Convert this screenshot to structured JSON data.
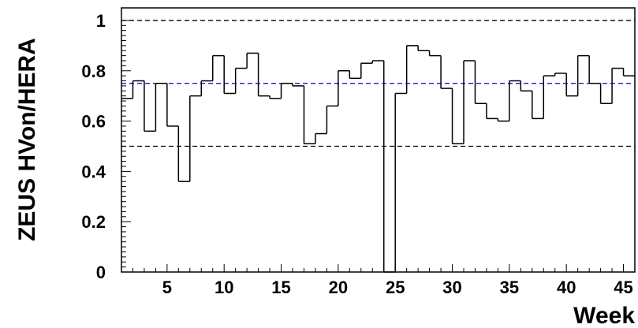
{
  "chart_data": {
    "type": "line",
    "step": true,
    "xlabel": "Week",
    "ylabel": "ZEUS HVon/HERA",
    "xlim": [
      1,
      46
    ],
    "ylim": [
      0,
      1.05
    ],
    "x_ticks": [
      5,
      10,
      15,
      20,
      25,
      30,
      35,
      40,
      45
    ],
    "y_ticks": [
      0,
      0.2,
      0.4,
      0.6,
      0.8,
      1
    ],
    "y_tick_labels": [
      "0",
      "0.2",
      "0.4",
      "0.6",
      "0.8",
      "1"
    ],
    "grid": false,
    "bin_edges": [
      1,
      2,
      3,
      4,
      5,
      6,
      7,
      8,
      9,
      10,
      11,
      12,
      13,
      14,
      15,
      16,
      17,
      18,
      19,
      20,
      21,
      22,
      23,
      24,
      25,
      26,
      27,
      28,
      29,
      30,
      31,
      32,
      33,
      34,
      35,
      36,
      37,
      38,
      39,
      40,
      41,
      42,
      43,
      44,
      45,
      46
    ],
    "values": [
      0.69,
      0.76,
      0.56,
      0.75,
      0.58,
      0.36,
      0.7,
      0.76,
      0.86,
      0.71,
      0.81,
      0.87,
      0.7,
      0.69,
      0.75,
      0.74,
      0.51,
      0.55,
      0.66,
      0.8,
      0.77,
      0.83,
      0.84,
      0.0,
      0.71,
      0.9,
      0.88,
      0.86,
      0.73,
      0.51,
      0.84,
      0.67,
      0.61,
      0.6,
      0.76,
      0.72,
      0.61,
      0.78,
      0.79,
      0.7,
      0.86,
      0.75,
      0.67,
      0.81,
      0.78
    ],
    "reference_lines": [
      {
        "y": 1.0,
        "color": "#000000",
        "style": "dashed"
      },
      {
        "y": 0.75,
        "color": "#0000cc",
        "style": "dashed"
      },
      {
        "y": 0.5,
        "color": "#000000",
        "style": "dashed"
      }
    ]
  }
}
